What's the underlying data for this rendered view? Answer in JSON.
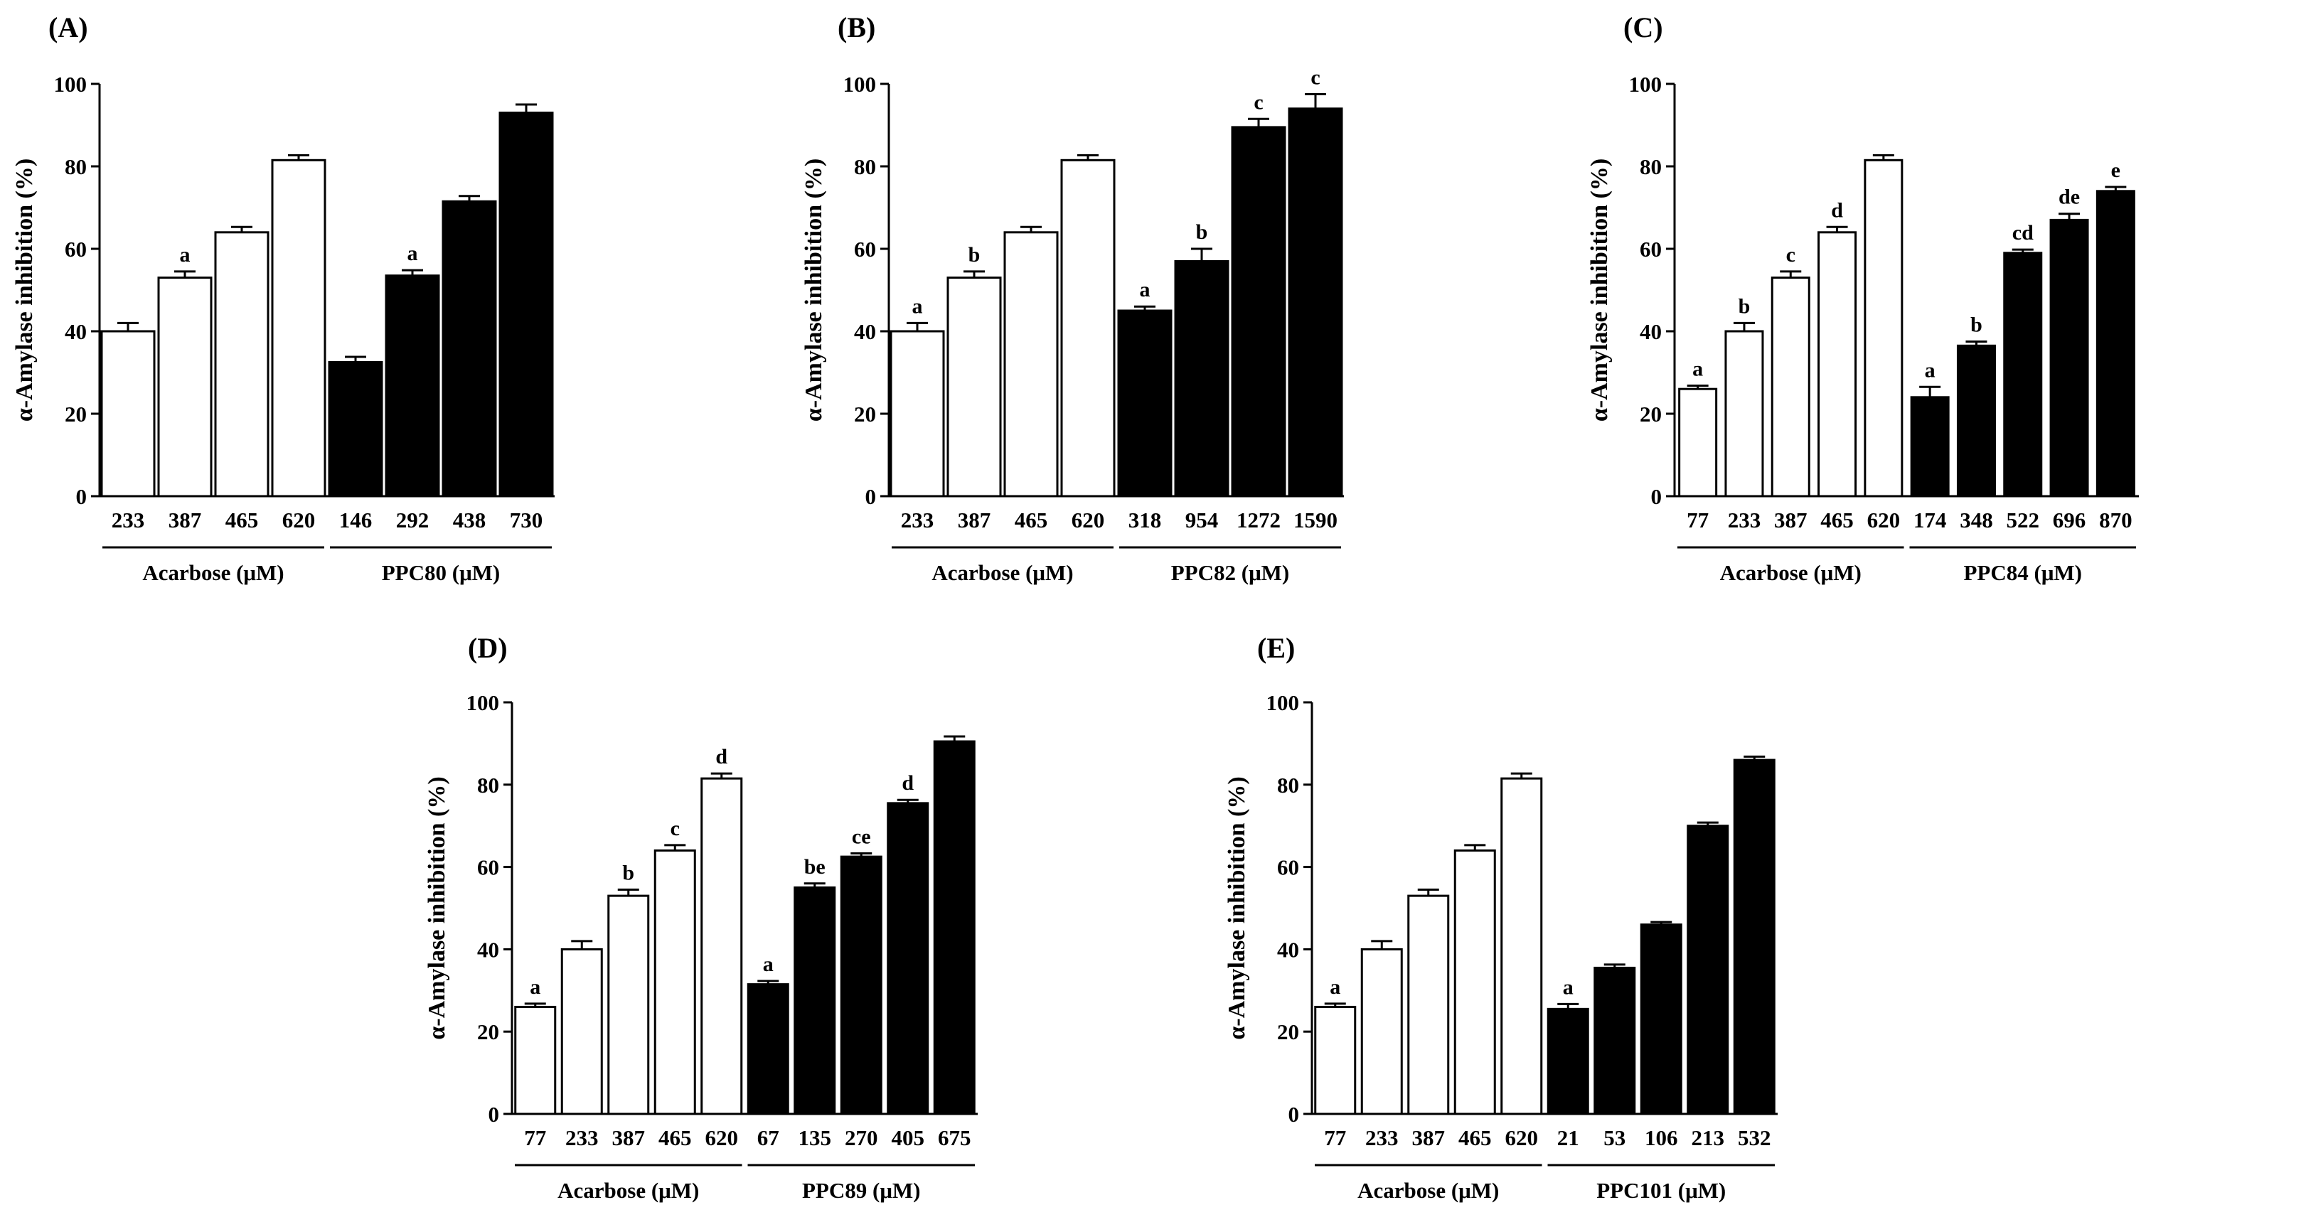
{
  "figure": {
    "y_axis_label": "α-Amylase inhibition (%)",
    "bar_colors": {
      "reference": "#ffffff",
      "compound": "#000000",
      "stroke": "#000000"
    }
  },
  "chart_data": [
    {
      "panel": "(A)",
      "type": "bar",
      "title": "(A)",
      "ylabel": "α-Amylase inhibition (%)",
      "ylim": [
        0,
        100
      ],
      "yticks": [
        0,
        20,
        40,
        60,
        80,
        100
      ],
      "groups": [
        {
          "name": "Acarbose (μM)",
          "categories": [
            "233",
            "387",
            "465",
            "620"
          ],
          "values": [
            40,
            53,
            64,
            81.5
          ],
          "errors": [
            2,
            1.5,
            1.3,
            1.2
          ],
          "letters": [
            "",
            "a",
            "",
            ""
          ],
          "fill": "white"
        },
        {
          "name": "PPC80 (μM)",
          "categories": [
            "146",
            "292",
            "438",
            "730"
          ],
          "values": [
            32.5,
            53.5,
            71.5,
            93
          ],
          "errors": [
            1.3,
            1.3,
            1.3,
            2
          ],
          "letters": [
            "",
            "a",
            "",
            ""
          ],
          "fill": "black"
        }
      ]
    },
    {
      "panel": "(B)",
      "type": "bar",
      "title": "(B)",
      "ylabel": "α-Amylase inhibition (%)",
      "ylim": [
        0,
        100
      ],
      "yticks": [
        0,
        20,
        40,
        60,
        80,
        100
      ],
      "groups": [
        {
          "name": "Acarbose (μM)",
          "categories": [
            "233",
            "387",
            "465",
            "620"
          ],
          "values": [
            40,
            53,
            64,
            81.5
          ],
          "errors": [
            2,
            1.5,
            1.3,
            1.2
          ],
          "letters": [
            "a",
            "b",
            "",
            ""
          ],
          "fill": "white"
        },
        {
          "name": "PPC82 (μM)",
          "categories": [
            "318",
            "954",
            "1272",
            "1590"
          ],
          "values": [
            45,
            57,
            89.5,
            94
          ],
          "errors": [
            1,
            3,
            2,
            3.5
          ],
          "letters": [
            "a",
            "b",
            "c",
            "c"
          ],
          "fill": "black"
        }
      ]
    },
    {
      "panel": "(C)",
      "type": "bar",
      "title": "(C)",
      "ylabel": "α-Amylase inhibition (%)",
      "ylim": [
        0,
        100
      ],
      "yticks": [
        0,
        20,
        40,
        60,
        80,
        100
      ],
      "groups": [
        {
          "name": "Acarbose (μM)",
          "categories": [
            "77",
            "233",
            "387",
            "465",
            "620"
          ],
          "values": [
            26,
            40,
            53,
            64,
            81.5
          ],
          "errors": [
            0.8,
            2,
            1.5,
            1.3,
            1.2
          ],
          "letters": [
            "a",
            "b",
            "c",
            "d",
            ""
          ],
          "fill": "white"
        },
        {
          "name": "PPC84 (μM)",
          "categories": [
            "174",
            "348",
            "522",
            "696",
            "870"
          ],
          "values": [
            24,
            36.5,
            59,
            67,
            74
          ],
          "errors": [
            2.5,
            1,
            0.8,
            1.5,
            1
          ],
          "letters": [
            "a",
            "b",
            "cd",
            "de",
            "e"
          ],
          "fill": "black"
        }
      ]
    },
    {
      "panel": "(D)",
      "type": "bar",
      "title": "(D)",
      "ylabel": "α-Amylase inhibition (%)",
      "ylim": [
        0,
        100
      ],
      "yticks": [
        0,
        20,
        40,
        60,
        80,
        100
      ],
      "groups": [
        {
          "name": "Acarbose (μM)",
          "categories": [
            "77",
            "233",
            "387",
            "465",
            "620"
          ],
          "values": [
            26,
            40,
            53,
            64,
            81.5
          ],
          "errors": [
            0.8,
            2,
            1.5,
            1.3,
            1.2
          ],
          "letters": [
            "a",
            "",
            "b",
            "c",
            "d"
          ],
          "fill": "white"
        },
        {
          "name": "PPC89 (μM)",
          "categories": [
            "67",
            "135",
            "270",
            "405",
            "675"
          ],
          "values": [
            31.5,
            55,
            62.5,
            75.5,
            90.5
          ],
          "errors": [
            0.8,
            1,
            0.8,
            0.8,
            1.2
          ],
          "letters": [
            "a",
            "be",
            "ce",
            "d",
            ""
          ],
          "fill": "black"
        }
      ]
    },
    {
      "panel": "(E)",
      "type": "bar",
      "title": "(E)",
      "ylabel": "α-Amylase inhibition (%)",
      "ylim": [
        0,
        100
      ],
      "yticks": [
        0,
        20,
        40,
        60,
        80,
        100
      ],
      "groups": [
        {
          "name": "Acarbose (μM)",
          "categories": [
            "77",
            "233",
            "387",
            "465",
            "620"
          ],
          "values": [
            26,
            40,
            53,
            64,
            81.5
          ],
          "errors": [
            0.8,
            2,
            1.5,
            1.3,
            1.2
          ],
          "letters": [
            "a",
            "",
            "",
            "",
            ""
          ],
          "fill": "white"
        },
        {
          "name": "PPC101 (μM)",
          "categories": [
            "21",
            "53",
            "106",
            "213",
            "532"
          ],
          "values": [
            25.5,
            35.5,
            46,
            70,
            86
          ],
          "errors": [
            1.2,
            0.8,
            0.6,
            0.8,
            0.8
          ],
          "letters": [
            "a",
            "",
            "",
            "",
            ""
          ],
          "fill": "black"
        }
      ]
    }
  ]
}
